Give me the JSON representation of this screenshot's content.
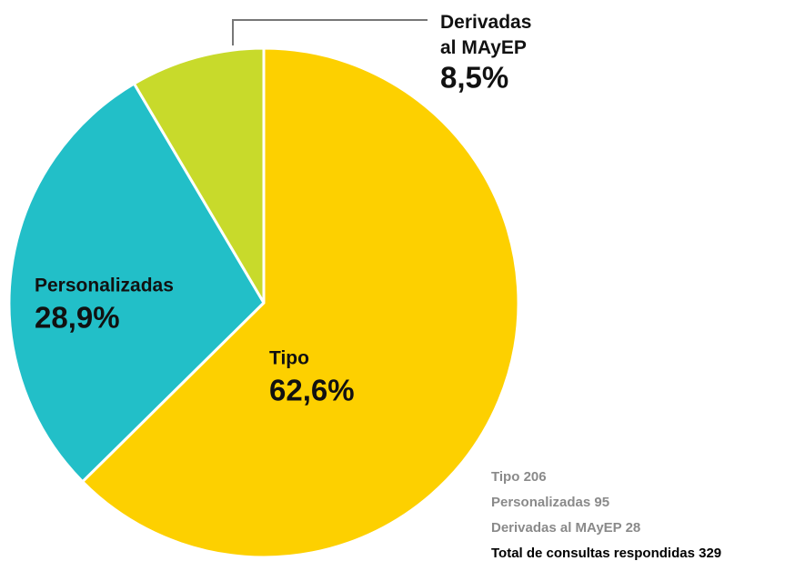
{
  "chart_data": {
    "type": "pie",
    "categories": [
      "Tipo",
      "Personalizadas",
      "Derivadas al MAyEP"
    ],
    "values": [
      62.6,
      28.9,
      8.5
    ],
    "value_labels": [
      "62,6%",
      "28,9%",
      "8,5%"
    ],
    "colors": [
      "#fdd000",
      "#22bfc8",
      "#c8da2b"
    ],
    "counts": [
      206,
      95,
      28
    ],
    "total_label": "Total de consultas respondidas",
    "total": 329
  }
}
